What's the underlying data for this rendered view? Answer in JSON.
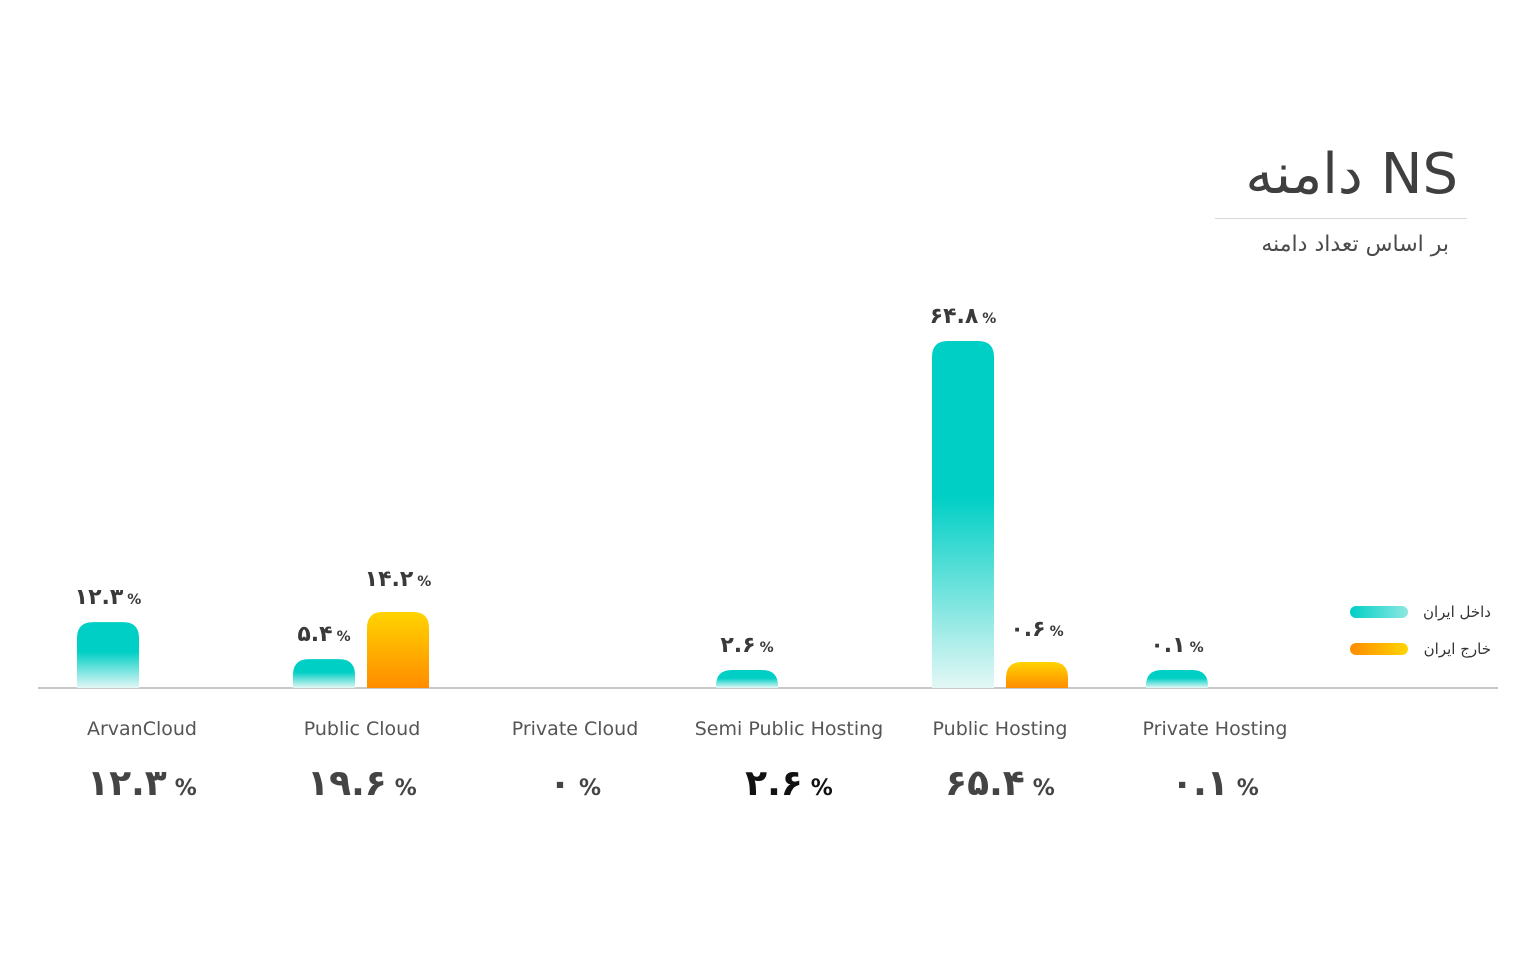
{
  "header": {
    "title": "NS دامنه",
    "subtitle": "بر اساس تعداد دامنه"
  },
  "legend": {
    "inside_iran": "داخل ایران",
    "outside_iran": "خارج ایران"
  },
  "colors": {
    "inside_top": "#00cfc5",
    "inside_bottom": "#e3f7f5",
    "outside_top": "#ffd400",
    "outside_bottom": "#ff8c00",
    "axis": "#c8c8c8",
    "text": "#444444"
  },
  "chart_data": {
    "type": "bar",
    "title": "NS دامنه",
    "subtitle": "بر اساس تعداد دامنه",
    "ylim": [
      0,
      70
    ],
    "grid": false,
    "legend_position": "right",
    "categories": [
      "ArvanCloud",
      "Public Cloud",
      "Private Cloud",
      "Semi Public Hosting",
      "Public Hosting",
      "Private Hosting"
    ],
    "series": [
      {
        "name": "داخل ایران",
        "values": [
          12.3,
          5.4,
          0,
          2.6,
          64.8,
          0.1
        ],
        "labels": [
          "۱۲.۳",
          "۵.۴",
          "",
          "۲.۶",
          "۶۴.۸",
          "۰.۱"
        ]
      },
      {
        "name": "خارج ایران",
        "values": [
          0,
          14.2,
          0,
          0,
          0.6,
          0
        ],
        "labels": [
          "",
          "۱۴.۲",
          "",
          "",
          "۰.۶",
          ""
        ]
      }
    ],
    "totals": [
      "۱۲.۳",
      "۱۹.۶",
      "۰",
      "۲.۶",
      "۶۵.۴",
      "۰.۱"
    ],
    "percent_sign": "%"
  }
}
